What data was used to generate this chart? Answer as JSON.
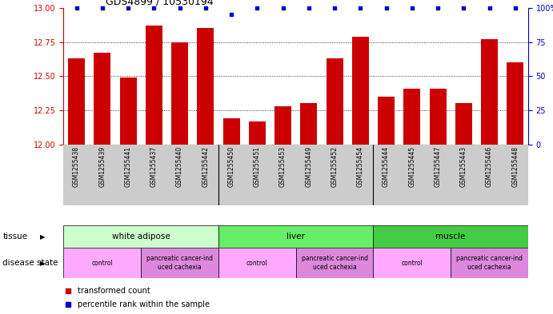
{
  "title": "GDS4899 / 10530194",
  "samples": [
    "GSM1255438",
    "GSM1255439",
    "GSM1255441",
    "GSM1255437",
    "GSM1255440",
    "GSM1255442",
    "GSM1255450",
    "GSM1255451",
    "GSM1255453",
    "GSM1255449",
    "GSM1255452",
    "GSM1255454",
    "GSM1255444",
    "GSM1255445",
    "GSM1255447",
    "GSM1255443",
    "GSM1255446",
    "GSM1255448"
  ],
  "bar_values": [
    12.63,
    12.67,
    12.49,
    12.87,
    12.75,
    12.85,
    12.19,
    12.17,
    12.28,
    12.3,
    12.63,
    12.79,
    12.35,
    12.41,
    12.41,
    12.3,
    12.77,
    12.6
  ],
  "percentile_values": [
    100,
    100,
    100,
    100,
    100,
    100,
    95,
    100,
    100,
    100,
    100,
    100,
    100,
    100,
    100,
    100,
    100,
    100
  ],
  "bar_color": "#cc0000",
  "percentile_color": "#0000cc",
  "ylim_left": [
    12.0,
    13.0
  ],
  "ylim_right": [
    0,
    100
  ],
  "yticks_left": [
    12.0,
    12.25,
    12.5,
    12.75,
    13.0
  ],
  "yticks_right": [
    0,
    25,
    50,
    75,
    100
  ],
  "tissue_groups": [
    {
      "label": "white adipose",
      "start": 0,
      "end": 5,
      "color": "#ccffcc"
    },
    {
      "label": "liver",
      "start": 6,
      "end": 11,
      "color": "#66ee66"
    },
    {
      "label": "muscle",
      "start": 12,
      "end": 17,
      "color": "#44cc44"
    }
  ],
  "disease_groups": [
    {
      "label": "control",
      "start": 0,
      "end": 2,
      "color": "#ffaaff"
    },
    {
      "label": "pancreatic cancer-ind\nuced cachexia",
      "start": 3,
      "end": 5,
      "color": "#dd88dd"
    },
    {
      "label": "control",
      "start": 6,
      "end": 8,
      "color": "#ffaaff"
    },
    {
      "label": "pancreatic cancer-ind\nuced cachexia",
      "start": 9,
      "end": 11,
      "color": "#dd88dd"
    },
    {
      "label": "control",
      "start": 12,
      "end": 14,
      "color": "#ffaaff"
    },
    {
      "label": "pancreatic cancer-ind\nuced cachexia",
      "start": 15,
      "end": 17,
      "color": "#dd88dd"
    }
  ],
  "background_color": "#ffffff",
  "label_bg_color": "#cccccc",
  "group_dividers": [
    5.5,
    11.5
  ],
  "dotted_lines": [
    12.25,
    12.5,
    12.75
  ]
}
